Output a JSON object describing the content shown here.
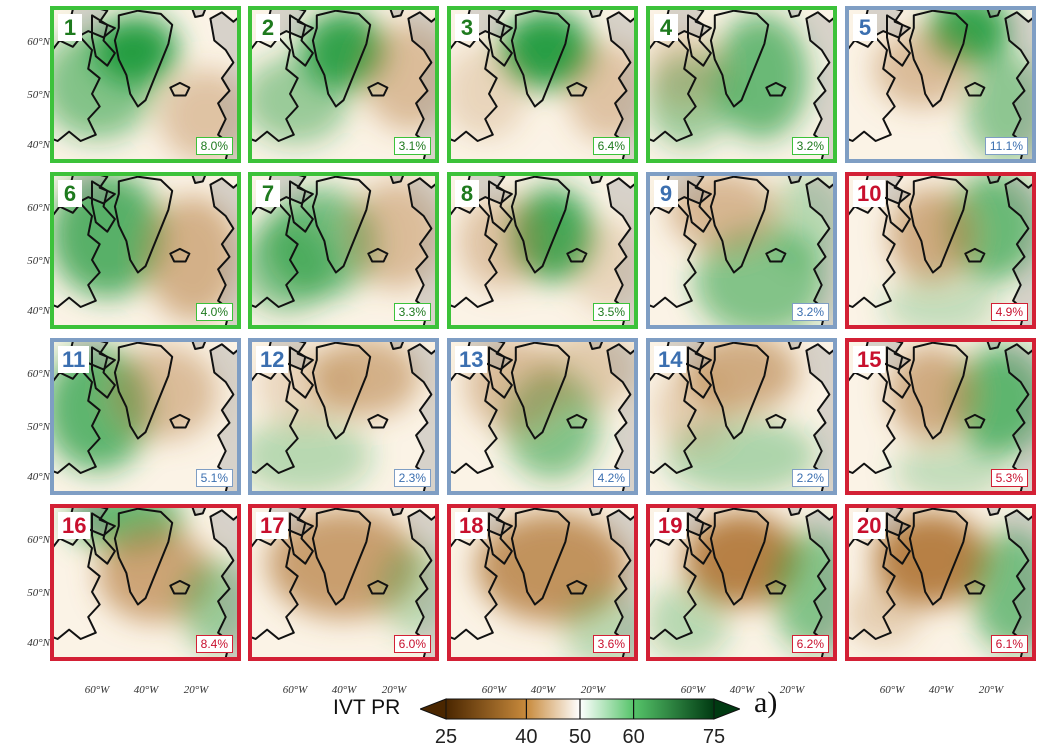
{
  "figure": {
    "panel_letter": "a)",
    "latitude_labels": [
      "60°N",
      "50°N",
      "40°N"
    ],
    "longitude_labels": [
      "60°W",
      "40°W",
      "20°W"
    ]
  },
  "colorbar": {
    "title": "IVT PR",
    "ticks": [
      "25",
      "40",
      "50",
      "60",
      "75"
    ],
    "tick_values": [
      25,
      40,
      50,
      60,
      75
    ],
    "range": [
      25,
      75
    ],
    "color_low": "#4a2600",
    "color_mid": "#ffffff",
    "color_high": "#003a12",
    "extend": "both"
  },
  "group_colors": {
    "green": "#3cc23a",
    "blue": "#7f9ec4",
    "red": "#d32035"
  },
  "text_colors": {
    "green": "#1e7a1e",
    "blue": "#3b6fb0",
    "red": "#c8102e"
  },
  "panels": [
    {
      "number": "1",
      "frequency": "8.0%",
      "group": "green"
    },
    {
      "number": "2",
      "frequency": "3.1%",
      "group": "green"
    },
    {
      "number": "3",
      "frequency": "6.4%",
      "group": "green"
    },
    {
      "number": "4",
      "frequency": "3.2%",
      "group": "green"
    },
    {
      "number": "5",
      "frequency": "11.1%",
      "group": "blue"
    },
    {
      "number": "6",
      "frequency": "4.0%",
      "group": "green"
    },
    {
      "number": "7",
      "frequency": "3.3%",
      "group": "green"
    },
    {
      "number": "8",
      "frequency": "3.5%",
      "group": "green"
    },
    {
      "number": "9",
      "frequency": "3.2%",
      "group": "blue"
    },
    {
      "number": "10",
      "frequency": "4.9%",
      "group": "red"
    },
    {
      "number": "11",
      "frequency": "5.1%",
      "group": "blue"
    },
    {
      "number": "12",
      "frequency": "2.3%",
      "group": "blue"
    },
    {
      "number": "13",
      "frequency": "4.2%",
      "group": "blue"
    },
    {
      "number": "14",
      "frequency": "2.2%",
      "group": "blue"
    },
    {
      "number": "15",
      "frequency": "5.3%",
      "group": "red"
    },
    {
      "number": "16",
      "frequency": "8.4%",
      "group": "red"
    },
    {
      "number": "17",
      "frequency": "6.0%",
      "group": "red"
    },
    {
      "number": "18",
      "frequency": "3.6%",
      "group": "red"
    },
    {
      "number": "19",
      "frequency": "6.2%",
      "group": "red"
    },
    {
      "number": "20",
      "frequency": "6.1%",
      "group": "red"
    }
  ]
}
